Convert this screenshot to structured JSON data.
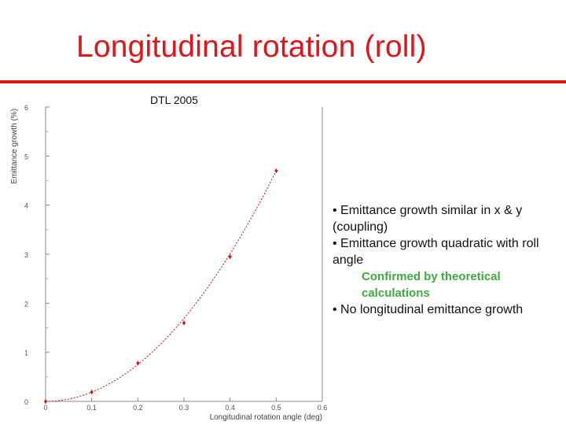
{
  "slide": {
    "title": "Longitudinal rotation (roll)",
    "caption": "DTL 2005",
    "colors": {
      "title": "#e0151c",
      "rule": "#e0151c",
      "highlight": "#3faa3f",
      "series": "#cc1111"
    }
  },
  "chart_data": {
    "type": "scatter",
    "title": "",
    "xlabel": "Longitudinal rotation angle (deg)",
    "ylabel": "Emittance growth (%)",
    "xlim": [
      0,
      0.6
    ],
    "ylim": [
      0,
      6
    ],
    "x_ticks": [
      "0",
      "0.1",
      "0.2",
      "0.3",
      "0.4",
      "0.5",
      "0.6"
    ],
    "y_ticks": [
      "0",
      "1",
      "2",
      "3",
      "4",
      "5",
      "6"
    ],
    "grid": false,
    "series": [
      {
        "name": "emittance growth",
        "marker": "points",
        "fit": "quadratic",
        "x": [
          0.0,
          0.1,
          0.2,
          0.3,
          0.4,
          0.5
        ],
        "y": [
          0.0,
          0.19,
          0.78,
          1.6,
          2.95,
          4.7
        ],
        "fit_curve": {
          "a": 18.8,
          "b": 0.0,
          "c": 0.0
        }
      }
    ]
  },
  "notes": {
    "line1": "• Emittance growth similar in x & y (coupling)",
    "line2": "• Emittance growth quadratic with roll angle",
    "line3": "Confirmed by theoretical calculations",
    "line4": "• No longitudinal emittance growth"
  }
}
